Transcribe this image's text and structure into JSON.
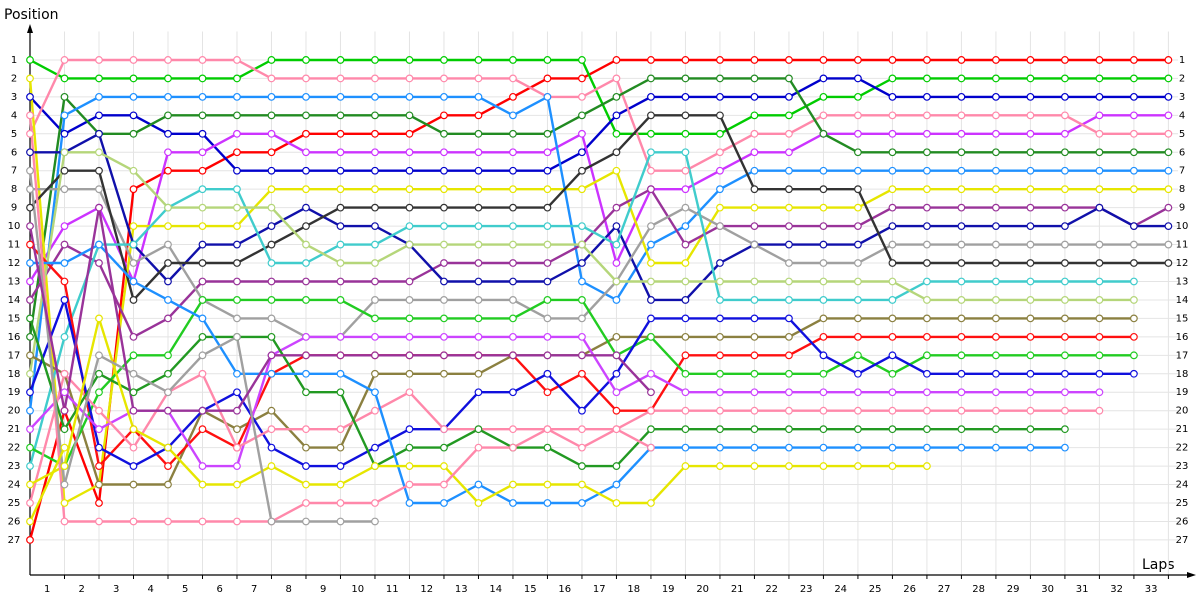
{
  "chart_data": {
    "type": "line",
    "y_label": "Position",
    "x_label": "Laps",
    "x": [
      0,
      1,
      2,
      3,
      4,
      5,
      6,
      7,
      8,
      9,
      10,
      11,
      12,
      13,
      14,
      15,
      16,
      17,
      18,
      19,
      20,
      21,
      22,
      23,
      24,
      25,
      26,
      27,
      28,
      29,
      30,
      31,
      32,
      33
    ],
    "xlim": [
      0,
      33.8
    ],
    "ylim": [
      0,
      28.9
    ],
    "y_inverted": true,
    "grid": true,
    "marker_fill": "#ffffff",
    "xticks": [
      1,
      2,
      3,
      4,
      5,
      6,
      7,
      8,
      9,
      10,
      11,
      12,
      13,
      14,
      15,
      16,
      17,
      18,
      19,
      20,
      21,
      22,
      23,
      24,
      25,
      26,
      27,
      28,
      29,
      30,
      31,
      32,
      33
    ],
    "yticks": [
      1,
      2,
      3,
      4,
      5,
      6,
      7,
      8,
      9,
      10,
      11,
      12,
      13,
      14,
      15,
      16,
      17,
      18,
      19,
      20,
      21,
      22,
      23,
      24,
      25,
      26,
      27
    ],
    "series": [
      {
        "color": "#ff0000",
        "values": [
          27,
          20,
          25,
          8,
          7,
          7,
          6,
          6,
          5,
          5,
          5,
          5,
          4,
          4,
          3,
          2,
          2,
          1,
          1,
          1,
          1,
          1,
          1,
          1,
          1,
          1,
          1,
          1,
          1,
          1,
          1,
          1,
          1,
          1
        ]
      },
      {
        "color": "#00cc00",
        "values": [
          1,
          2,
          2,
          2,
          2,
          2,
          2,
          1,
          1,
          1,
          1,
          1,
          1,
          1,
          1,
          1,
          1,
          5,
          5,
          5,
          5,
          4,
          4,
          3,
          3,
          2,
          2,
          2,
          2,
          2,
          2,
          2,
          2,
          2
        ]
      },
      {
        "color": "#0000cc",
        "values": [
          3,
          5,
          4,
          4,
          5,
          5,
          7,
          7,
          7,
          7,
          7,
          7,
          7,
          7,
          7,
          7,
          6,
          4,
          3,
          3,
          3,
          3,
          3,
          2,
          2,
          3,
          3,
          3,
          3,
          3,
          3,
          3,
          3,
          3
        ]
      },
      {
        "color": "#cc33ff",
        "values": [
          13,
          10,
          9,
          13,
          6,
          6,
          5,
          5,
          6,
          6,
          6,
          6,
          6,
          6,
          6,
          6,
          5,
          12,
          8,
          8,
          7,
          6,
          6,
          5,
          5,
          5,
          5,
          5,
          5,
          5,
          5,
          4,
          4,
          4
        ]
      },
      {
        "color": "#ff88aa",
        "values": [
          5,
          1,
          1,
          1,
          1,
          1,
          1,
          2,
          2,
          2,
          2,
          2,
          2,
          2,
          2,
          3,
          3,
          2,
          7,
          7,
          6,
          5,
          5,
          4,
          4,
          4,
          4,
          4,
          4,
          4,
          4,
          5,
          5,
          5
        ]
      },
      {
        "color": "#228b22",
        "values": [
          16,
          3,
          5,
          5,
          4,
          4,
          4,
          4,
          4,
          4,
          4,
          4,
          5,
          5,
          5,
          5,
          4,
          3,
          2,
          2,
          2,
          2,
          2,
          5,
          6,
          6,
          6,
          6,
          6,
          6,
          6,
          6,
          6,
          6
        ]
      },
      {
        "color": "#1e90ff",
        "values": [
          20,
          4,
          3,
          3,
          3,
          3,
          3,
          3,
          3,
          3,
          3,
          3,
          3,
          3,
          4,
          3,
          13,
          14,
          11,
          10,
          8,
          7,
          7,
          7,
          7,
          7,
          7,
          7,
          7,
          7,
          7,
          7,
          7,
          7
        ]
      },
      {
        "color": "#e6e600",
        "values": [
          2,
          25,
          24,
          10,
          10,
          10,
          10,
          8,
          8,
          8,
          8,
          8,
          8,
          8,
          8,
          8,
          8,
          7,
          12,
          12,
          9,
          9,
          9,
          9,
          9,
          8,
          8,
          8,
          8,
          8,
          8,
          8,
          8,
          8
        ]
      },
      {
        "color": "#993399",
        "values": [
          14,
          11,
          12,
          16,
          15,
          13,
          13,
          13,
          13,
          13,
          13,
          13,
          12,
          12,
          12,
          12,
          11,
          9,
          8,
          11,
          10,
          10,
          10,
          10,
          10,
          9,
          9,
          9,
          9,
          9,
          9,
          9,
          10,
          9
        ]
      },
      {
        "color": "#1010aa",
        "values": [
          6,
          6,
          5,
          11,
          13,
          11,
          11,
          10,
          9,
          10,
          10,
          11,
          13,
          13,
          13,
          13,
          12,
          10,
          14,
          14,
          12,
          11,
          11,
          11,
          11,
          10,
          10,
          10,
          10,
          10,
          10,
          9,
          10,
          10
        ]
      },
      {
        "color": "#a0a0a0",
        "values": [
          8,
          8,
          8,
          12,
          11,
          14,
          15,
          15,
          16,
          16,
          14,
          14,
          14,
          14,
          14,
          15,
          15,
          13,
          10,
          9,
          10,
          11,
          12,
          12,
          12,
          11,
          11,
          11,
          11,
          11,
          11,
          11,
          11,
          11
        ]
      },
      {
        "color": "#333333",
        "values": [
          9,
          7,
          7,
          14,
          12,
          12,
          12,
          11,
          10,
          9,
          9,
          9,
          9,
          9,
          9,
          9,
          7,
          6,
          4,
          4,
          4,
          8,
          8,
          8,
          8,
          12,
          12,
          12,
          12,
          12,
          12,
          12,
          12,
          12
        ]
      },
      {
        "color": "#40cccc",
        "values": [
          23,
          16,
          11,
          11,
          9,
          8,
          8,
          12,
          12,
          11,
          11,
          10,
          10,
          10,
          10,
          10,
          10,
          11,
          6,
          6,
          14,
          14,
          14,
          14,
          14,
          14,
          13,
          13,
          13,
          13,
          13,
          13,
          13,
          null
        ]
      },
      {
        "color": "#b5d67a",
        "values": [
          18,
          6,
          6,
          7,
          9,
          9,
          9,
          9,
          11,
          12,
          12,
          11,
          11,
          11,
          11,
          11,
          11,
          13,
          13,
          13,
          13,
          13,
          13,
          13,
          13,
          13,
          14,
          14,
          14,
          14,
          14,
          14,
          14,
          null
        ]
      },
      {
        "color": "#8b8040",
        "values": [
          17,
          18,
          24,
          24,
          24,
          20,
          21,
          20,
          22,
          22,
          18,
          18,
          18,
          18,
          17,
          17,
          17,
          16,
          16,
          16,
          16,
          16,
          16,
          15,
          15,
          15,
          15,
          15,
          15,
          15,
          15,
          15,
          15,
          null
        ]
      },
      {
        "color": "#ff1010",
        "values": [
          11,
          13,
          23,
          21,
          23,
          21,
          22,
          18,
          17,
          17,
          17,
          17,
          17,
          17,
          17,
          19,
          18,
          20,
          20,
          17,
          17,
          17,
          17,
          16,
          16,
          16,
          16,
          16,
          16,
          16,
          16,
          16,
          16,
          null
        ]
      },
      {
        "color": "#22cc22",
        "values": [
          22,
          23,
          19,
          17,
          17,
          14,
          14,
          14,
          14,
          14,
          15,
          15,
          15,
          15,
          15,
          14,
          14,
          17,
          16,
          18,
          18,
          18,
          18,
          18,
          17,
          18,
          17,
          17,
          17,
          17,
          17,
          17,
          17,
          null
        ]
      },
      {
        "color": "#1010dd",
        "values": [
          19,
          14,
          22,
          23,
          22,
          20,
          19,
          22,
          23,
          23,
          22,
          21,
          21,
          19,
          19,
          18,
          20,
          18,
          15,
          15,
          15,
          15,
          15,
          17,
          18,
          17,
          18,
          18,
          18,
          18,
          18,
          18,
          18,
          null
        ]
      },
      {
        "color": "#cc44ff",
        "values": [
          21,
          19,
          21,
          20,
          20,
          23,
          23,
          17,
          16,
          16,
          16,
          16,
          16,
          16,
          16,
          16,
          16,
          19,
          18,
          19,
          19,
          19,
          19,
          19,
          19,
          19,
          19,
          19,
          19,
          19,
          19,
          19,
          null,
          null
        ]
      },
      {
        "color": "#ff88aa",
        "values": [
          25,
          18,
          20,
          22,
          19,
          18,
          22,
          21,
          21,
          21,
          20,
          19,
          21,
          21,
          21,
          21,
          22,
          21,
          20,
          20,
          20,
          20,
          20,
          20,
          20,
          20,
          20,
          20,
          20,
          20,
          20,
          20,
          null,
          null
        ]
      },
      {
        "color": "#229922",
        "values": [
          15,
          21,
          18,
          19,
          18,
          16,
          16,
          16,
          19,
          19,
          23,
          22,
          22,
          21,
          22,
          22,
          23,
          23,
          21,
          21,
          21,
          21,
          21,
          21,
          21,
          21,
          21,
          21,
          21,
          21,
          21,
          null,
          null,
          null
        ]
      },
      {
        "color": "#1e90ff",
        "values": [
          12,
          12,
          11,
          13,
          14,
          15,
          18,
          18,
          18,
          18,
          19,
          25,
          25,
          24,
          25,
          25,
          25,
          24,
          22,
          22,
          22,
          22,
          22,
          22,
          22,
          22,
          22,
          22,
          22,
          22,
          22,
          null,
          null,
          null
        ]
      },
      {
        "color": "#e6e600",
        "values": [
          24,
          23,
          15,
          21,
          22,
          24,
          24,
          23,
          24,
          24,
          23,
          23,
          23,
          25,
          24,
          24,
          24,
          25,
          25,
          23,
          23,
          23,
          23,
          23,
          23,
          23,
          23,
          null,
          null,
          null,
          null,
          null,
          null,
          null
        ]
      },
      {
        "color": "#ff88aa",
        "values": [
          4,
          26,
          26,
          26,
          26,
          26,
          26,
          26,
          25,
          25,
          25,
          24,
          24,
          22,
          22,
          21,
          21,
          21,
          22,
          null,
          null,
          null,
          null,
          null,
          null,
          null,
          null,
          null,
          null,
          null,
          null,
          null,
          null,
          null
        ]
      },
      {
        "color": "#a0a0a0",
        "values": [
          7,
          24,
          17,
          18,
          19,
          17,
          16,
          26,
          26,
          26,
          26,
          null,
          null,
          null,
          null,
          null,
          null,
          null,
          null,
          null,
          null,
          null,
          null,
          null,
          null,
          null,
          null,
          null,
          null,
          null,
          null,
          null,
          null,
          null
        ]
      },
      {
        "color": "#993399",
        "values": [
          10,
          20,
          9,
          20,
          20,
          20,
          20,
          17,
          17,
          17,
          17,
          17,
          17,
          17,
          17,
          17,
          17,
          17,
          19,
          null,
          null,
          null,
          null,
          null,
          null,
          null,
          null,
          null,
          null,
          null,
          null,
          null,
          null,
          null
        ]
      },
      {
        "color": "#e6e600",
        "values": [
          26,
          22,
          null,
          null,
          null,
          null,
          null,
          null,
          null,
          null,
          null,
          null,
          null,
          null,
          null,
          null,
          null,
          null,
          null,
          null,
          null,
          null,
          null,
          null,
          null,
          null,
          null,
          null,
          null,
          null,
          null,
          null,
          null,
          null
        ]
      }
    ]
  }
}
